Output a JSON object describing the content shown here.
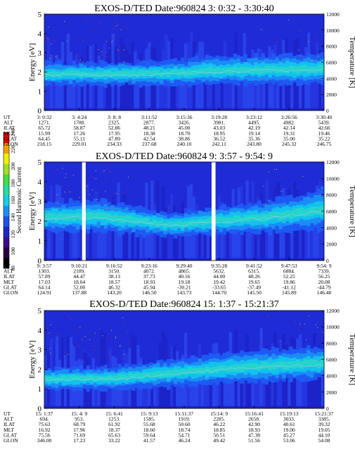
{
  "colorbar": {
    "label": "Second Harmonic Current",
    "ticks": [
      "80",
      "100",
      "120",
      "140",
      "160",
      "180",
      "200",
      "220",
      "240"
    ],
    "colors": [
      "#000000",
      "#2a0040",
      "#3a0a8c",
      "#1c26c8",
      "#1e50f0",
      "#1a90f4",
      "#10d0e8",
      "#20e0a0",
      "#40e040",
      "#a0e020",
      "#f0f000",
      "#f0a000",
      "#e80000"
    ]
  },
  "chart_data": [
    {
      "type": "heatmap",
      "title": "EXOS-D/TED  Date:960824  3: 0:32 - 3:30:40",
      "ylabel": "Energy [eV]",
      "ylabel_right": "Temperature [K]",
      "ylim": [
        0,
        5
      ],
      "ylim_right": [
        0,
        12000
      ],
      "y_ticks": [
        "0",
        "1",
        "2",
        "3",
        "4",
        "5"
      ],
      "y_ticks_right": [
        "0",
        "2000",
        "4000",
        "6000",
        "8000",
        "10000",
        "12000"
      ],
      "gaps": [],
      "band": [
        [
          0.0,
          1.9,
          0.6
        ],
        [
          0.3,
          1.9,
          0.6
        ],
        [
          0.5,
          1.95,
          0.65
        ],
        [
          0.55,
          2.05,
          0.7
        ],
        [
          0.7,
          2.1,
          0.75
        ],
        [
          1.0,
          2.15,
          0.8
        ]
      ],
      "table": {
        "row_labels": [
          "UT",
          "ALT",
          "ILAT",
          "MLT",
          "GLAT",
          "GLON"
        ],
        "columns": [
          [
            "3: 0:32",
            "1271.",
            "65.72",
            "15.99",
            "64.45",
            "218.15"
          ],
          [
            "3: 4:24",
            "1788.",
            "58.87",
            "17.26",
            "55.11",
            "229.01"
          ],
          [
            "3: 8: 8",
            "2325.",
            "52.86",
            "17.95",
            "47.89",
            "234.33"
          ],
          [
            "3:11:52",
            "2877.",
            "48.21",
            "18.38",
            "42.54",
            "237.68"
          ],
          [
            "3:15:36",
            "3426.",
            "45.00",
            "18.70",
            "38.86",
            "240.10"
          ],
          [
            "3:19:28",
            "3981.",
            "43.03",
            "18.95",
            "36.52",
            "242.11"
          ],
          [
            "3:23:12",
            "4495.",
            "42.19",
            "19.14",
            "35.36",
            "243.80"
          ],
          [
            "3:26:56",
            "4982.",
            "42.14",
            "19.31",
            "35.00",
            "245.32"
          ],
          [
            "3:30:40",
            "5439.",
            "42.66",
            "19.46",
            "35.22",
            "246.75"
          ]
        ]
      }
    },
    {
      "type": "heatmap",
      "title": "EXOS-D/TED  Date:960824  9: 3:57 - 9:54: 9",
      "ylabel": "Energy [eV]",
      "ylabel_right": "Temperature [K]",
      "ylim": [
        0,
        5
      ],
      "ylim_right": [
        0,
        12000
      ],
      "y_ticks": [
        "0",
        "1",
        "2",
        "3",
        "4",
        "5"
      ],
      "y_ticks_right": [
        "0",
        "2000",
        "4000",
        "6000",
        "8000",
        "10000",
        "12000"
      ],
      "gaps": [
        [
          0.135,
          0.148
        ],
        [
          0.598,
          0.612
        ]
      ],
      "band": [
        [
          0.0,
          2.2,
          0.75
        ],
        [
          0.2,
          2.25,
          0.8
        ],
        [
          0.45,
          1.8,
          0.6
        ],
        [
          0.6,
          2.0,
          0.7
        ],
        [
          0.8,
          2.2,
          0.8
        ],
        [
          1.0,
          2.6,
          1.0
        ]
      ],
      "table": {
        "row_labels": [
          "UT",
          "ALT",
          "ILAT",
          "MLT",
          "GLAT",
          "GLON"
        ],
        "columns": [
          [
            "9: 3:57",
            "1303.",
            "57.89",
            "17.03",
            "64.14",
            "124.91"
          ],
          [
            "9:10:21",
            "2189.",
            "44.47",
            "18.04",
            "52.00",
            "137.88"
          ],
          [
            "9:16:52",
            "3150.",
            "38.13",
            "18.57",
            "46.32",
            "143.20"
          ],
          [
            "9:23:16",
            "4072.",
            "37.73",
            "18.93",
            "45.94",
            "146.50"
          ],
          [
            "9:29:40",
            "4865.",
            "40.16",
            "19.18",
            "-30.21",
            "143.73"
          ],
          [
            "9:35:28",
            "5632.",
            "44.00",
            "19.42",
            "-33.65",
            "144.70"
          ],
          [
            "9:41:52",
            "6315.",
            "48.26",
            "19.65",
            "-37.49",
            "145.50"
          ],
          [
            "9:47:53",
            "6884.",
            "52.25",
            "19.86",
            "-41.12",
            "145.89"
          ],
          [
            "9:54: 9",
            "7339.",
            "56.25",
            "20.08",
            "-44.79",
            "146.40"
          ]
        ]
      }
    },
    {
      "type": "heatmap",
      "title": "EXOS-D/TED  Date:960824  15: 1:37 - 15:21:37",
      "ylabel": "Energy [eV]",
      "ylabel_right": "Temperature [K]",
      "ylim": [
        0,
        5
      ],
      "ylim_right": [
        0,
        12000
      ],
      "y_ticks": [
        "0",
        "1",
        "2",
        "3",
        "4",
        "5"
      ],
      "y_ticks_right": [
        "0",
        "2000",
        "4000",
        "6000",
        "8000",
        "10000",
        "12000"
      ],
      "gaps": [],
      "band": [
        [
          0.0,
          1.5,
          0.55
        ],
        [
          0.25,
          1.55,
          0.6
        ],
        [
          0.45,
          1.8,
          0.7
        ],
        [
          0.7,
          2.1,
          0.8
        ],
        [
          1.0,
          2.3,
          0.85
        ]
      ],
      "table": {
        "row_labels": [
          "UT",
          "ALT",
          "ILAT",
          "MLT",
          "GLAT",
          "GLON"
        ],
        "columns": [
          [
            "15: 1:37",
            "694.",
            "75.63",
            "16.92",
            "75.56",
            "346.00"
          ],
          [
            "15: 4: 9",
            "953.",
            "68.79",
            "17.96",
            "71.69",
            "17.23"
          ],
          [
            "15: 6:41",
            "1253.",
            "61.92",
            "18.37",
            "65.63",
            "33.22"
          ],
          [
            "15: 9:13",
            "1585.",
            "55.68",
            "18.60",
            "59.64",
            "41.57"
          ],
          [
            "15:11:37",
            "1919.",
            "50.60",
            "18.74",
            "54.71",
            "46.24"
          ],
          [
            "15:14: 9",
            "2285.",
            "46.22",
            "18.85",
            "50.51",
            "49.42"
          ],
          [
            "15:16:41",
            "2658.",
            "42.90",
            "18.93",
            "47.38",
            "51.56"
          ],
          [
            "15:19:13",
            "3033.",
            "40.61",
            "19.00",
            "45.27",
            "53.06"
          ],
          [
            "15:21:37",
            "3385.",
            "39.32",
            "19.05",
            "44.10",
            "54.08"
          ]
        ]
      }
    }
  ]
}
